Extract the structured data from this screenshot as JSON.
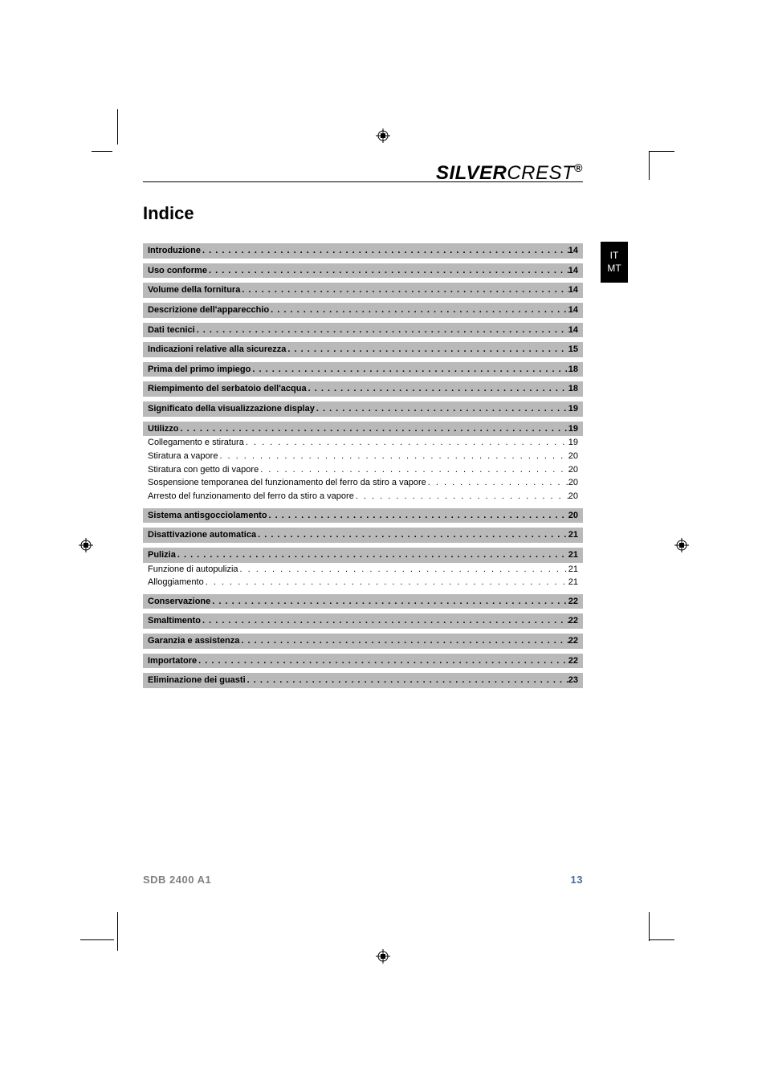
{
  "brand_bold": "SILVER",
  "brand_thin": "CREST",
  "brand_mark": "®",
  "title": "Indice",
  "lang_tab_lines": [
    "IT",
    "MT"
  ],
  "footer_model": "SDB 2400 A1",
  "footer_page": "13",
  "colors": {
    "section_bg": "#b9b9b9",
    "text": "#000000",
    "footer_grey": "#808080",
    "footer_blue": "#4a6aa0",
    "tab_bg": "#000000",
    "tab_text": "#ffffff"
  },
  "toc": [
    {
      "type": "section",
      "label": "Introduzione",
      "page": "14"
    },
    {
      "type": "section",
      "label": "Uso conforme",
      "page": "14"
    },
    {
      "type": "section",
      "label": "Volume della fornitura",
      "page": "14"
    },
    {
      "type": "section",
      "label": "Descrizione dell'apparecchio",
      "page": "14"
    },
    {
      "type": "section",
      "label": "Dati tecnici",
      "page": "14"
    },
    {
      "type": "section",
      "label": "Indicazioni relative alla sicurezza",
      "page": "15"
    },
    {
      "type": "section",
      "label": "Prima del primo impiego",
      "page": "18"
    },
    {
      "type": "section",
      "label": "Riempimento del serbatoio dell'acqua",
      "page": "18"
    },
    {
      "type": "section",
      "label": "Significato della visualizzazione display",
      "page": "19"
    },
    {
      "type": "section",
      "label": "Utilizzo",
      "page": "19"
    },
    {
      "type": "sub",
      "label": "Collegamento e stiratura",
      "page": "19"
    },
    {
      "type": "sub",
      "label": "Stiratura a vapore",
      "page": "20"
    },
    {
      "type": "sub",
      "label": "Stiratura con getto di vapore",
      "page": "20"
    },
    {
      "type": "sub",
      "label": "Sospensione temporanea del funzionamento del ferro da stiro a vapore",
      "page": "20"
    },
    {
      "type": "sub",
      "label": "Arresto del funzionamento del ferro da stiro a vapore",
      "page": "20"
    },
    {
      "type": "section",
      "label": "Sistema antisgocciolamento",
      "page": "20"
    },
    {
      "type": "section",
      "label": "Disattivazione automatica",
      "page": "21"
    },
    {
      "type": "section",
      "label": "Pulizia",
      "page": "21"
    },
    {
      "type": "sub",
      "label": "Funzione di autopulizia",
      "page": "21"
    },
    {
      "type": "sub",
      "label": "Alloggiamento",
      "page": "21"
    },
    {
      "type": "section",
      "label": "Conservazione",
      "page": "22"
    },
    {
      "type": "section",
      "label": "Smaltimento",
      "page": "22"
    },
    {
      "type": "section",
      "label": "Garanzia e assistenza",
      "page": "22"
    },
    {
      "type": "section",
      "label": "Importatore",
      "page": "22"
    },
    {
      "type": "section",
      "label": "Eliminazione dei guasti",
      "page": "23"
    }
  ]
}
